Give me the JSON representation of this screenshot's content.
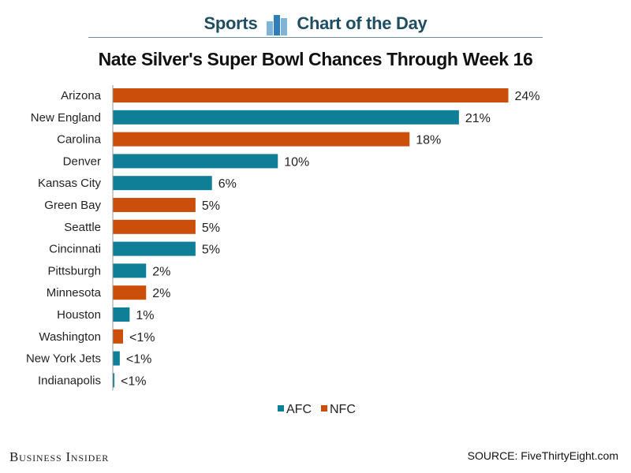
{
  "header": {
    "left_word": "Sports",
    "right_word": "Chart of the Day"
  },
  "colors": {
    "afc": "#0e7f96",
    "nfc": "#cc4e0b",
    "logo_light": "#7fb4d6",
    "logo_dark": "#2c7fb8"
  },
  "chart_data": {
    "type": "bar",
    "orientation": "horizontal",
    "title": "Nate Silver's Super Bowl Chances Through Week 16",
    "xlabel": "",
    "ylabel": "",
    "xlim": [
      0,
      24
    ],
    "categories": [
      "Arizona",
      "New England",
      "Carolina",
      "Denver",
      "Kansas City",
      "Green Bay",
      "Seattle",
      "Cincinnati",
      "Pittsburgh",
      "Minnesota",
      "Houston",
      "Washington",
      "New York Jets",
      "Indianapolis"
    ],
    "values": [
      24,
      21,
      18,
      10,
      6,
      5,
      5,
      5,
      2,
      2,
      1,
      0.6,
      0.4,
      0.05
    ],
    "value_labels": [
      "24%",
      "21%",
      "18%",
      "10%",
      "6%",
      "5%",
      "5%",
      "5%",
      "2%",
      "2%",
      "1%",
      "<1%",
      "<1%",
      "<1%"
    ],
    "conference": [
      "NFC",
      "AFC",
      "NFC",
      "AFC",
      "AFC",
      "NFC",
      "NFC",
      "AFC",
      "AFC",
      "NFC",
      "AFC",
      "NFC",
      "AFC",
      "AFC"
    ],
    "legend": [
      {
        "name": "AFC",
        "color": "#0e7f96"
      },
      {
        "name": "NFC",
        "color": "#cc4e0b"
      }
    ],
    "legend_position": "bottom-center",
    "grid": false
  },
  "footer": {
    "brand": "Business Insider",
    "source": "SOURCE: FiveThirtyEight.com"
  }
}
